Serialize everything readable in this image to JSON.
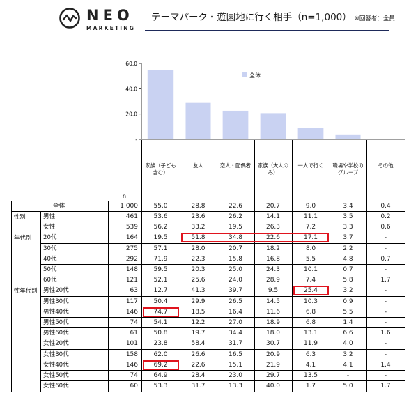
{
  "logo": {
    "word": "NEO",
    "sub": "MARKETING"
  },
  "title": {
    "text": "テーマパーク・遊園地に行く相手（n=1,000）",
    "note": "※回答者：全員"
  },
  "chart_data": {
    "type": "bar",
    "y_ticks": [
      "60.0",
      "40.0",
      "20.0",
      "-"
    ],
    "ylim": [
      0,
      60
    ],
    "legend": "全体",
    "legend_position": "top-center",
    "bar_color": "#c9d2f2",
    "categories": [
      "家族（子ども含む）",
      "友人",
      "恋人・配偶者",
      "家族（大人のみ）",
      "一人で行く",
      "職場や学校のグループ",
      "その他"
    ],
    "values": [
      55.0,
      28.8,
      22.6,
      20.7,
      9.0,
      3.4,
      0.4
    ]
  },
  "table": {
    "n_label": "n",
    "headers": [
      "家族（子ども含む）",
      "友人",
      "恋人・配偶者",
      "家族（大人のみ）",
      "一人で行く",
      "職場や学校のグループ",
      "その他"
    ],
    "rows": [
      {
        "group": "",
        "label": "全体",
        "n": "1,000",
        "v": [
          "55.0",
          "28.8",
          "22.6",
          "20.7",
          "9.0",
          "3.4",
          "0.4"
        ]
      },
      {
        "group": "性別",
        "label": "男性",
        "n": "461",
        "v": [
          "53.6",
          "23.6",
          "26.2",
          "14.1",
          "11.1",
          "3.5",
          "0.2"
        ]
      },
      {
        "group": "",
        "label": "女性",
        "n": "539",
        "v": [
          "56.2",
          "33.2",
          "19.5",
          "26.3",
          "7.2",
          "3.3",
          "0.6"
        ]
      },
      {
        "group": "年代別",
        "label": "20代",
        "n": "164",
        "v": [
          "19.5",
          "51.8",
          "34.8",
          "22.6",
          "17.1",
          "3.7",
          "-"
        ]
      },
      {
        "group": "",
        "label": "30代",
        "n": "275",
        "v": [
          "57.1",
          "28.0",
          "20.7",
          "18.2",
          "8.0",
          "2.2",
          "-"
        ]
      },
      {
        "group": "",
        "label": "40代",
        "n": "292",
        "v": [
          "71.9",
          "22.3",
          "15.8",
          "16.8",
          "5.5",
          "4.8",
          "0.7"
        ]
      },
      {
        "group": "",
        "label": "50代",
        "n": "148",
        "v": [
          "59.5",
          "20.3",
          "25.0",
          "24.3",
          "10.1",
          "0.7",
          "-"
        ]
      },
      {
        "group": "",
        "label": "60代",
        "n": "121",
        "v": [
          "52.1",
          "25.6",
          "24.0",
          "28.9",
          "7.4",
          "5.8",
          "1.7"
        ]
      },
      {
        "group": "性年代別",
        "label": "男性20代",
        "n": "63",
        "v": [
          "12.7",
          "41.3",
          "39.7",
          "9.5",
          "25.4",
          "3.2",
          "-"
        ]
      },
      {
        "group": "",
        "label": "男性30代",
        "n": "117",
        "v": [
          "50.4",
          "29.9",
          "26.5",
          "14.5",
          "10.3",
          "0.9",
          "-"
        ]
      },
      {
        "group": "",
        "label": "男性40代",
        "n": "146",
        "v": [
          "74.7",
          "18.5",
          "16.4",
          "11.6",
          "6.8",
          "5.5",
          "-"
        ]
      },
      {
        "group": "",
        "label": "男性50代",
        "n": "74",
        "v": [
          "54.1",
          "12.2",
          "27.0",
          "18.9",
          "6.8",
          "1.4",
          "-"
        ]
      },
      {
        "group": "",
        "label": "男性60代",
        "n": "61",
        "v": [
          "50.8",
          "19.7",
          "34.4",
          "18.0",
          "13.1",
          "6.6",
          "1.6"
        ]
      },
      {
        "group": "",
        "label": "女性20代",
        "n": "101",
        "v": [
          "23.8",
          "58.4",
          "31.7",
          "30.7",
          "11.9",
          "4.0",
          "-"
        ]
      },
      {
        "group": "",
        "label": "女性30代",
        "n": "158",
        "v": [
          "62.0",
          "26.6",
          "16.5",
          "20.9",
          "6.3",
          "3.2",
          "-"
        ]
      },
      {
        "group": "",
        "label": "女性40代",
        "n": "146",
        "v": [
          "69.2",
          "22.6",
          "15.1",
          "21.9",
          "4.1",
          "4.1",
          "1.4"
        ]
      },
      {
        "group": "",
        "label": "女性50代",
        "n": "74",
        "v": [
          "64.9",
          "28.4",
          "23.0",
          "29.7",
          "13.5",
          "-",
          "-"
        ]
      },
      {
        "group": "",
        "label": "女性60代",
        "n": "60",
        "v": [
          "53.3",
          "31.7",
          "13.3",
          "40.0",
          "1.7",
          "5.0",
          "1.7"
        ]
      }
    ],
    "highlights": [
      {
        "row": 3,
        "cols": [
          1,
          4
        ]
      },
      {
        "row": 8,
        "cols": [
          4,
          4
        ]
      },
      {
        "row": 10,
        "cols": [
          0,
          0
        ]
      },
      {
        "row": 15,
        "cols": [
          0,
          0
        ]
      }
    ],
    "highlight_color": "#e0141e"
  }
}
